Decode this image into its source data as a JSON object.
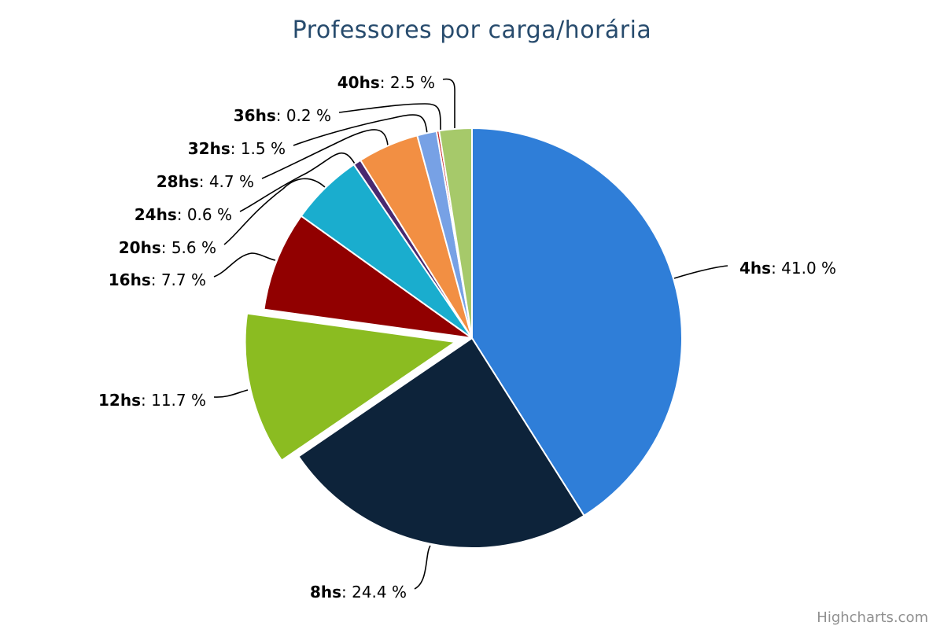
{
  "chart_data": {
    "type": "pie",
    "title": "Professores por carga/horária",
    "value_unit": "%",
    "slices": [
      {
        "name": "4hs",
        "value": 41.0,
        "label_value": "41.0 %",
        "color": "#2f7ed8",
        "sliced": false
      },
      {
        "name": "8hs",
        "value": 24.4,
        "label_value": "24.4 %",
        "color": "#0d233a",
        "sliced": false
      },
      {
        "name": "12hs",
        "value": 11.7,
        "label_value": "11.7 %",
        "color": "#8bbc21",
        "sliced": true
      },
      {
        "name": "16hs",
        "value": 7.7,
        "label_value": "7.7 %",
        "color": "#910000",
        "sliced": false
      },
      {
        "name": "20hs",
        "value": 5.6,
        "label_value": "5.6 %",
        "color": "#1aadce",
        "sliced": false
      },
      {
        "name": "24hs",
        "value": 0.6,
        "label_value": "0.6 %",
        "color": "#492970",
        "sliced": false
      },
      {
        "name": "28hs",
        "value": 4.7,
        "label_value": "4.7 %",
        "color": "#f28f43",
        "sliced": false
      },
      {
        "name": "32hs",
        "value": 1.5,
        "label_value": "1.5 %",
        "color": "#77a1e5",
        "sliced": false
      },
      {
        "name": "36hs",
        "value": 0.2,
        "label_value": "0.2 %",
        "color": "#c42525",
        "sliced": false
      },
      {
        "name": "40hs",
        "value": 2.5,
        "label_value": "2.5 %",
        "color": "#a6c96a",
        "sliced": false
      }
    ],
    "legend": false
  },
  "credits": {
    "text": "Highcharts.com"
  }
}
